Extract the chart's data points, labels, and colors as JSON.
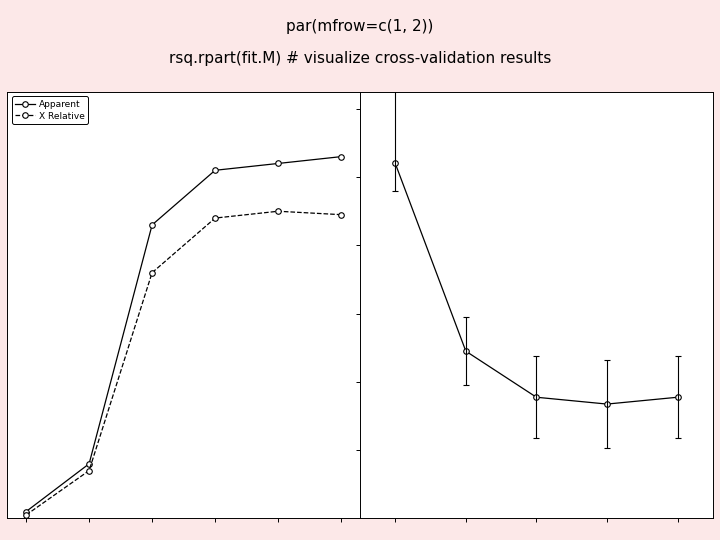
{
  "title_line1": "par(mfrow=c(1, 2))",
  "title_line2": "rsq.rpart(fit.M) # visualize cross-validation results",
  "bg_color": "#fce8e8",
  "plot_bg": "#ffffff",
  "left": {
    "x": [
      0,
      1,
      2,
      3,
      4,
      5
    ],
    "apparent_y": [
      0.02,
      0.16,
      0.86,
      1.02,
      1.04,
      1.06
    ],
    "xrelative_y": [
      0.01,
      0.14,
      0.72,
      0.88,
      0.9,
      0.89
    ],
    "ylim": [
      0.0,
      1.25
    ],
    "yticks": [
      0.2,
      0.4,
      0.6,
      0.8,
      1.0,
      1.2
    ],
    "legend_labels": [
      "Apparent",
      "X Relative"
    ]
  },
  "right": {
    "x": [
      1,
      2,
      3,
      4,
      5
    ],
    "y": [
      1.04,
      0.49,
      0.355,
      0.335,
      0.355
    ],
    "yerr_lo": [
      0.08,
      0.1,
      0.12,
      0.13,
      0.12
    ],
    "yerr_hi": [
      0.22,
      0.1,
      0.12,
      0.13,
      0.12
    ],
    "ylim": [
      0.0,
      1.25
    ],
    "yticks": [
      0.2,
      0.4,
      0.6,
      0.8,
      1.0,
      1.2
    ]
  },
  "title_fontsize": 11,
  "tick_fontsize": 7.5
}
